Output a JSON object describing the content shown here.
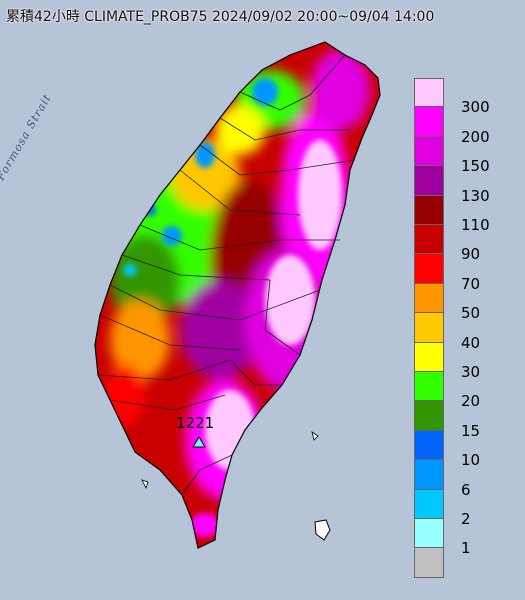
{
  "title": "累積42小時 CLIMATE_PROB75 2024/09/02 20:00~09/04 14:00",
  "sea_label": "Formosa Strait",
  "max_value_label": "1221",
  "legend": {
    "labels": [
      "300",
      "200",
      "150",
      "130",
      "110",
      "90",
      "70",
      "50",
      "40",
      "30",
      "20",
      "15",
      "10",
      "6",
      "2",
      "1"
    ],
    "colors": [
      "#ffc8ff",
      "#ff00ff",
      "#e000e0",
      "#a000a0",
      "#960000",
      "#c80000",
      "#ff0000",
      "#ff9600",
      "#ffc800",
      "#ffff00",
      "#32ff00",
      "#329600",
      "#0064ff",
      "#0096ff",
      "#00c8ff",
      "#96ffff",
      "#c0c0c0"
    ]
  },
  "colors": {
    "sea": "#aebdd1",
    "land_outline": "#000000"
  }
}
